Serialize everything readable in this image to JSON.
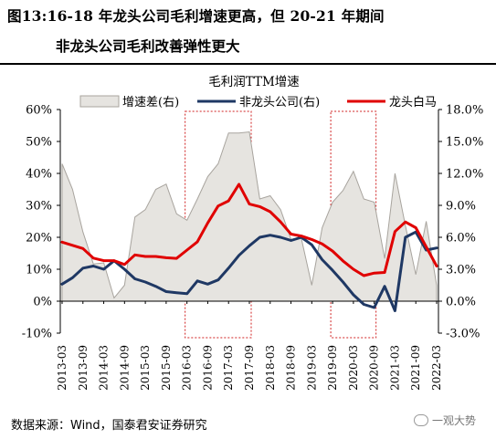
{
  "header": {
    "title_line1": "图13:16-18 年龙头公司毛利增速更高，但 20-21 年期间",
    "title_line2": "非龙头公司毛利改善弹性更大"
  },
  "footer": {
    "source": "数据来源：Wind，国泰君安证券研究",
    "watermark": "一观大势"
  },
  "chart_data": {
    "type": "line",
    "title": "毛利润TTM增速",
    "left_axis": {
      "min": -10,
      "max": 60,
      "step": 10,
      "unit": "%"
    },
    "right_axis": {
      "min": -3,
      "max": 18,
      "step": 3,
      "unit": "%",
      "decimals": 1
    },
    "x_labels": [
      "2013-03",
      "2013-09",
      "2014-03",
      "2014-09",
      "2015-03",
      "2015-09",
      "2016-03",
      "2016-09",
      "2017-03",
      "2017-09",
      "2018-03",
      "2018-09",
      "2019-03",
      "2019-09",
      "2020-03",
      "2020-09",
      "2021-03",
      "2021-09",
      "2022-03"
    ],
    "x": [
      0,
      1,
      2,
      3,
      4,
      5,
      6,
      7,
      8,
      9,
      10,
      11,
      12,
      13,
      14,
      15,
      16,
      17,
      18,
      19,
      20,
      21,
      22,
      23,
      24,
      25,
      26,
      27,
      28,
      29,
      30,
      31,
      32,
      33,
      34,
      35,
      36
    ],
    "shaded_periods": [
      [
        12,
        18
      ],
      [
        26,
        30
      ]
    ],
    "legend_position": "top",
    "series": [
      {
        "name": "增速差(右)",
        "axis": "right",
        "style": "area",
        "color": "#e6e4e0",
        "stroke": "#a8a49e",
        "values": [
          12.9,
          10.5,
          6.5,
          3.5,
          3.6,
          0.3,
          1.5,
          7.9,
          8.6,
          10.5,
          11.0,
          8.2,
          7.6,
          9.6,
          11.7,
          12.9,
          15.8,
          15.8,
          15.9,
          9.6,
          9.9,
          8.6,
          5.8,
          5.9,
          1.5,
          6.9,
          9.3,
          10.4,
          12.2,
          9.6,
          9.3,
          4.0,
          12.0,
          7.1,
          2.5,
          7.5,
          1.5
        ]
      },
      {
        "name": "非龙头公司(右)",
        "axis": "right",
        "style": "line",
        "color": "#1f3864",
        "values": [
          1.6,
          2.2,
          3.1,
          3.3,
          3.0,
          3.8,
          3.0,
          2.1,
          1.8,
          1.4,
          0.9,
          0.8,
          0.7,
          1.9,
          1.6,
          2.0,
          3.1,
          4.3,
          5.2,
          6.0,
          6.2,
          6.0,
          5.7,
          6.0,
          5.3,
          3.9,
          2.9,
          1.8,
          0.6,
          -0.3,
          -0.6,
          1.4,
          -0.9,
          6.0,
          6.5,
          4.8,
          5.0
        ]
      },
      {
        "name": "龙头白马",
        "axis": "left",
        "style": "line",
        "color": "#e00000",
        "values": [
          18.5,
          17.5,
          16.5,
          13.5,
          12.7,
          12.7,
          11.5,
          14.5,
          14.0,
          14.0,
          13.6,
          13.4,
          16.0,
          18.6,
          24.5,
          29.8,
          31.4,
          36.6,
          30.4,
          29.6,
          28.0,
          24.8,
          21.0,
          20.4,
          19.3,
          17.9,
          15.7,
          12.6,
          10.0,
          8.0,
          8.8,
          9.0,
          21.8,
          24.8,
          23.0,
          17.0,
          11.0
        ]
      }
    ]
  }
}
